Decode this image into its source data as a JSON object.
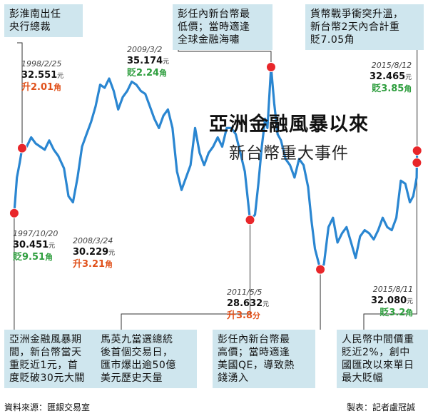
{
  "chart_data": {
    "type": "line",
    "title": "亞洲金融風暴以來",
    "subtitle": "新台幣重大事件",
    "series": [
      {
        "values": [
          [
            1997.8,
            30.45
          ],
          [
            1997.92,
            31.6
          ],
          [
            1998.05,
            32.1
          ],
          [
            1998.15,
            32.55
          ],
          [
            1998.35,
            32.6
          ],
          [
            1998.55,
            32.9
          ],
          [
            1998.75,
            32.7
          ],
          [
            1998.95,
            32.6
          ],
          [
            1999.15,
            32.5
          ],
          [
            1999.35,
            32.8
          ],
          [
            1999.55,
            32.5
          ],
          [
            1999.75,
            32.3
          ],
          [
            2000.0,
            31.9
          ],
          [
            2000.2,
            31.0
          ],
          [
            2000.4,
            30.8
          ],
          [
            2000.6,
            31.6
          ],
          [
            2000.8,
            32.6
          ],
          [
            2001.0,
            33.0
          ],
          [
            2001.2,
            33.4
          ],
          [
            2001.4,
            33.9
          ],
          [
            2001.6,
            34.6
          ],
          [
            2001.8,
            34.5
          ],
          [
            2002.0,
            34.8
          ],
          [
            2002.2,
            34.4
          ],
          [
            2002.4,
            33.8
          ],
          [
            2002.6,
            34.2
          ],
          [
            2002.8,
            34.4
          ],
          [
            2003.0,
            34.7
          ],
          [
            2003.2,
            34.6
          ],
          [
            2003.4,
            34.4
          ],
          [
            2003.6,
            34.3
          ],
          [
            2003.8,
            33.9
          ],
          [
            2004.0,
            33.5
          ],
          [
            2004.2,
            33.2
          ],
          [
            2004.4,
            33.6
          ],
          [
            2004.6,
            33.8
          ],
          [
            2004.8,
            33.2
          ],
          [
            2005.0,
            31.8
          ],
          [
            2005.2,
            31.2
          ],
          [
            2005.4,
            31.6
          ],
          [
            2005.6,
            32.0
          ],
          [
            2005.8,
            33.2
          ],
          [
            2006.0,
            32.4
          ],
          [
            2006.2,
            32.0
          ],
          [
            2006.4,
            32.4
          ],
          [
            2006.6,
            32.6
          ],
          [
            2006.8,
            32.9
          ],
          [
            2007.0,
            32.6
          ],
          [
            2007.2,
            33.2
          ],
          [
            2007.4,
            33.2
          ],
          [
            2007.6,
            33.0
          ],
          [
            2007.8,
            32.4
          ],
          [
            2008.0,
            31.8
          ],
          [
            2008.23,
            30.23
          ],
          [
            2008.45,
            30.4
          ],
          [
            2008.6,
            31.4
          ],
          [
            2008.75,
            32.6
          ],
          [
            2008.9,
            33.5
          ],
          [
            2009.0,
            33.2
          ],
          [
            2009.16,
            35.17
          ],
          [
            2009.3,
            34.0
          ],
          [
            2009.45,
            33.0
          ],
          [
            2009.6,
            32.8
          ],
          [
            2009.8,
            32.2
          ],
          [
            2010.0,
            32.0
          ],
          [
            2010.2,
            31.6
          ],
          [
            2010.4,
            32.2
          ],
          [
            2010.6,
            32.0
          ],
          [
            2010.8,
            31.3
          ],
          [
            2010.95,
            30.2
          ],
          [
            2011.1,
            29.3
          ],
          [
            2011.34,
            28.63
          ],
          [
            2011.5,
            28.8
          ],
          [
            2011.7,
            30.0
          ],
          [
            2011.9,
            30.3
          ],
          [
            2012.1,
            29.5
          ],
          [
            2012.3,
            29.8
          ],
          [
            2012.5,
            30.0
          ],
          [
            2012.7,
            29.5
          ],
          [
            2012.9,
            29.0
          ],
          [
            2013.1,
            29.7
          ],
          [
            2013.3,
            29.9
          ],
          [
            2013.5,
            29.8
          ],
          [
            2013.7,
            29.6
          ],
          [
            2013.9,
            29.9
          ],
          [
            2014.1,
            30.3
          ],
          [
            2014.3,
            30.0
          ],
          [
            2014.5,
            29.9
          ],
          [
            2014.7,
            30.3
          ],
          [
            2014.9,
            31.5
          ],
          [
            2015.1,
            31.4
          ],
          [
            2015.3,
            30.8
          ],
          [
            2015.45,
            31.0
          ],
          [
            2015.6,
            31.6
          ],
          [
            2015.61,
            32.08
          ],
          [
            2015.62,
            32.47
          ]
        ]
      }
    ],
    "ylim": [
      28.0,
      36.0
    ],
    "xlim": [
      1997.55,
      2015.85
    ],
    "colors": {
      "line": "#2a86d1",
      "marker": "#e8262a",
      "leader": "#333333"
    },
    "annotations": [
      {
        "date": "1997/10/20",
        "value": "30.451",
        "unit": "元",
        "change": "貶9.51",
        "change_unit": "角",
        "direction": "down",
        "x": 1997.8,
        "y": 30.45
      },
      {
        "date": "1998/2/25",
        "value": "32.551",
        "unit": "元",
        "change": "升2.01",
        "change_unit": "角",
        "direction": "up",
        "x": 1998.15,
        "y": 32.55
      },
      {
        "date": "2008/3/24",
        "value": "30.229",
        "unit": "元",
        "change": "升3.21",
        "change_unit": "角",
        "direction": "up",
        "x": 2008.23,
        "y": 30.23
      },
      {
        "date": "2009/3/2",
        "value": "35.174",
        "unit": "元",
        "change": "貶2.24",
        "change_unit": "角",
        "direction": "down",
        "x": 2009.16,
        "y": 35.17
      },
      {
        "date": "2011/5/5",
        "value": "28.632",
        "unit": "元",
        "change": "升3.8",
        "change_unit": "分",
        "direction": "up",
        "x": 2011.34,
        "y": 28.63
      },
      {
        "date": "2015/8/11",
        "value": "32.080",
        "unit": "元",
        "change": "貶3.2",
        "change_unit": "角",
        "direction": "down",
        "x": 2015.61,
        "y": 32.08
      },
      {
        "date": "2015/8/12",
        "value": "32.465",
        "unit": "元",
        "change": "貶3.85",
        "change_unit": "角",
        "direction": "down",
        "x": 2015.62,
        "y": 32.47
      }
    ]
  },
  "boxes": [
    {
      "id": "peng-appointed",
      "text": "彭淮南出任\n央行總裁"
    },
    {
      "id": "peng-low",
      "text": "彭任內新台幣最\n低價；當時適逢\n全球金融海嘯"
    },
    {
      "id": "currency-war",
      "text": "貨幣戰爭衝突升溫，\n新台幣2天內合計重\n貶7.05角"
    },
    {
      "id": "asia-crisis",
      "text": "亞洲金融風暴期\n間，新台幣當天\n重貶近1元，首\n度貶破30元大關"
    },
    {
      "id": "ma-elected",
      "text": "馬英九當選總統\n後首個交易日，\n匯市爆出逾50億\n美元歷史天量"
    },
    {
      "id": "peng-high",
      "text": "彭任內新台幣最\n高價；當時適逢\n美國QE，導致熱\n錢湧入"
    },
    {
      "id": "rmb-devalue",
      "text": "人民幣中間價重\n貶近2%，創中\n國匯改以來單日\n最大貶幅"
    }
  ],
  "footer": {
    "source": "資料來源：匯銀交易室",
    "credit": "製表：記者盧冠誠"
  }
}
